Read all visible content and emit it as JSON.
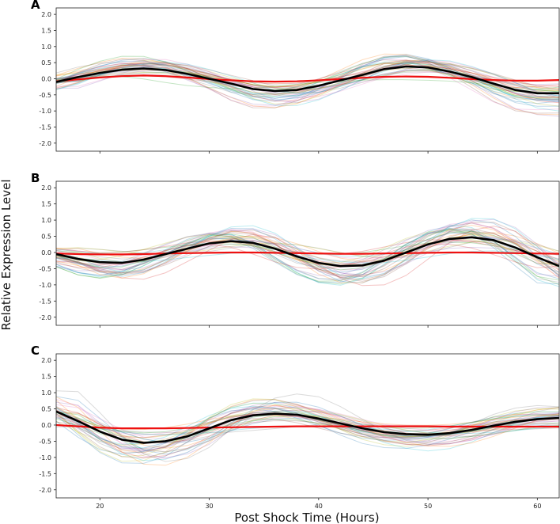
{
  "chart_data": [
    {
      "type": "line",
      "panel": "A",
      "xlim": [
        16,
        62
      ],
      "ylim": [
        -2.25,
        2.2
      ],
      "x_ticks": [
        20,
        30,
        40,
        50,
        60
      ],
      "y_ticks": [
        -2.0,
        -1.5,
        -1.0,
        -0.5,
        0.0,
        0.5,
        1.0,
        1.5,
        2.0
      ],
      "y_tick_labels": [
        "-2.0",
        "-1.5",
        "-1.0",
        "-0.5",
        "0.0",
        "0.5",
        "1.0",
        "1.5",
        "2.0"
      ],
      "x": [
        16,
        18,
        20,
        22,
        24,
        26,
        28,
        30,
        32,
        34,
        36,
        38,
        40,
        42,
        44,
        46,
        48,
        50,
        52,
        54,
        56,
        58,
        60,
        62
      ],
      "series": [
        {
          "name": "mean",
          "color": "#000000",
          "values": [
            -0.1,
            0.05,
            0.18,
            0.28,
            0.32,
            0.27,
            0.15,
            0.0,
            -0.15,
            -0.32,
            -0.38,
            -0.35,
            -0.22,
            -0.05,
            0.12,
            0.3,
            0.38,
            0.35,
            0.22,
            0.05,
            -0.15,
            -0.35,
            -0.45,
            -0.45
          ]
        },
        {
          "name": "fit",
          "color": "#ee1111",
          "values": [
            -0.08,
            -0.02,
            0.04,
            0.08,
            0.1,
            0.08,
            0.04,
            -0.01,
            -0.05,
            -0.08,
            -0.09,
            -0.08,
            -0.05,
            -0.01,
            0.03,
            0.06,
            0.07,
            0.06,
            0.03,
            -0.01,
            -0.04,
            -0.06,
            -0.06,
            -0.04
          ]
        }
      ]
    },
    {
      "type": "line",
      "panel": "B",
      "xlim": [
        16,
        62
      ],
      "ylim": [
        -2.25,
        2.2
      ],
      "x_ticks": [
        20,
        30,
        40,
        50,
        60
      ],
      "y_ticks": [
        -2.0,
        -1.5,
        -1.0,
        -0.5,
        0.0,
        0.5,
        1.0,
        1.5,
        2.0
      ],
      "y_tick_labels": [
        "-2.0",
        "-1.5",
        "-1.0",
        "-0.5",
        "0.0",
        "0.5",
        "1.0",
        "1.5",
        "2.0"
      ],
      "x": [
        16,
        18,
        20,
        22,
        24,
        26,
        28,
        30,
        32,
        34,
        36,
        38,
        40,
        42,
        44,
        46,
        48,
        50,
        52,
        54,
        56,
        58,
        60,
        62
      ],
      "series": [
        {
          "name": "mean",
          "color": "#000000",
          "values": [
            -0.05,
            -0.2,
            -0.3,
            -0.32,
            -0.22,
            -0.05,
            0.12,
            0.28,
            0.35,
            0.3,
            0.12,
            -0.12,
            -0.32,
            -0.42,
            -0.4,
            -0.25,
            0.0,
            0.25,
            0.42,
            0.47,
            0.38,
            0.15,
            -0.15,
            -0.42
          ]
        },
        {
          "name": "fit",
          "color": "#ee1111",
          "values": [
            -0.03,
            -0.05,
            -0.06,
            -0.06,
            -0.05,
            -0.03,
            -0.02,
            -0.01,
            0.0,
            0.0,
            -0.01,
            -0.02,
            -0.03,
            -0.04,
            -0.04,
            -0.03,
            -0.02,
            -0.01,
            0.0,
            0.0,
            -0.01,
            -0.02,
            -0.03,
            -0.04
          ]
        }
      ]
    },
    {
      "type": "line",
      "panel": "C",
      "xlim": [
        16,
        62
      ],
      "ylim": [
        -2.25,
        2.2
      ],
      "x_ticks": [
        20,
        30,
        40,
        50,
        60
      ],
      "x_tick_labels": [
        "20",
        "30",
        "40",
        "50",
        "60"
      ],
      "y_ticks": [
        -2.0,
        -1.5,
        -1.0,
        -0.5,
        0.0,
        0.5,
        1.0,
        1.5,
        2.0
      ],
      "y_tick_labels": [
        "-2.0",
        "-1.5",
        "-1.0",
        "-0.5",
        "0.0",
        "0.5",
        "1.0",
        "1.5",
        "2.0"
      ],
      "x": [
        16,
        18,
        20,
        22,
        24,
        26,
        28,
        30,
        32,
        34,
        36,
        38,
        40,
        42,
        44,
        46,
        48,
        50,
        52,
        54,
        56,
        58,
        60,
        62
      ],
      "series": [
        {
          "name": "mean",
          "color": "#000000",
          "values": [
            0.42,
            0.12,
            -0.2,
            -0.45,
            -0.55,
            -0.5,
            -0.35,
            -0.1,
            0.15,
            0.3,
            0.35,
            0.32,
            0.2,
            0.05,
            -0.1,
            -0.22,
            -0.28,
            -0.3,
            -0.25,
            -0.15,
            -0.02,
            0.1,
            0.18,
            0.22
          ]
        },
        {
          "name": "fit",
          "color": "#ee1111",
          "values": [
            0.0,
            -0.04,
            -0.08,
            -0.1,
            -0.1,
            -0.1,
            -0.09,
            -0.08,
            -0.07,
            -0.06,
            -0.05,
            -0.04,
            -0.04,
            -0.04,
            -0.04,
            -0.04,
            -0.04,
            -0.04,
            -0.05,
            -0.05,
            -0.05,
            -0.05,
            -0.05,
            -0.05
          ]
        }
      ]
    }
  ],
  "labels": {
    "panel_a": "A",
    "panel_b": "B",
    "panel_c": "C",
    "xlabel": "Post Shock Time (Hours)",
    "ylabel": "Relative Expression Level"
  },
  "spaghetti": {
    "line_count": 40,
    "palette": [
      "#1f77b4",
      "#ff7f0e",
      "#2ca02c",
      "#d62728",
      "#9467bd",
      "#8c564b",
      "#e377c2",
      "#7f7f7f",
      "#bcbd22",
      "#17becf"
    ]
  }
}
